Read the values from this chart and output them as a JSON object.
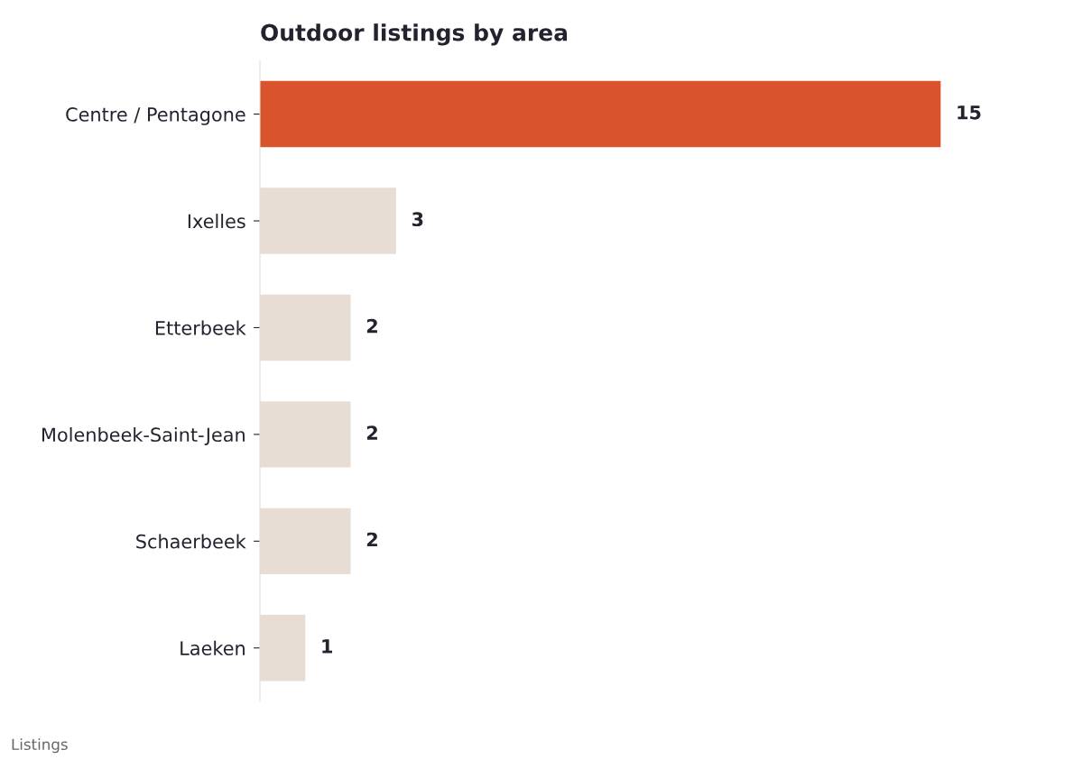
{
  "chart_data": {
    "type": "bar",
    "orientation": "horizontal",
    "title": "Outdoor listings by area",
    "categories": [
      "Centre / Pentagone",
      "Ixelles",
      "Etterbeek",
      "Molenbeek-Saint-Jean",
      "Schaerbeek",
      "Laeken"
    ],
    "values": [
      15,
      3,
      2,
      2,
      2,
      1
    ],
    "colors": [
      "#d9532c",
      "#e7ddd4",
      "#e7ddd4",
      "#e7ddd4",
      "#e7ddd4",
      "#e7ddd4"
    ],
    "data_labels": true,
    "grid": false,
    "legend": false,
    "annotations": [
      "Listings"
    ]
  }
}
